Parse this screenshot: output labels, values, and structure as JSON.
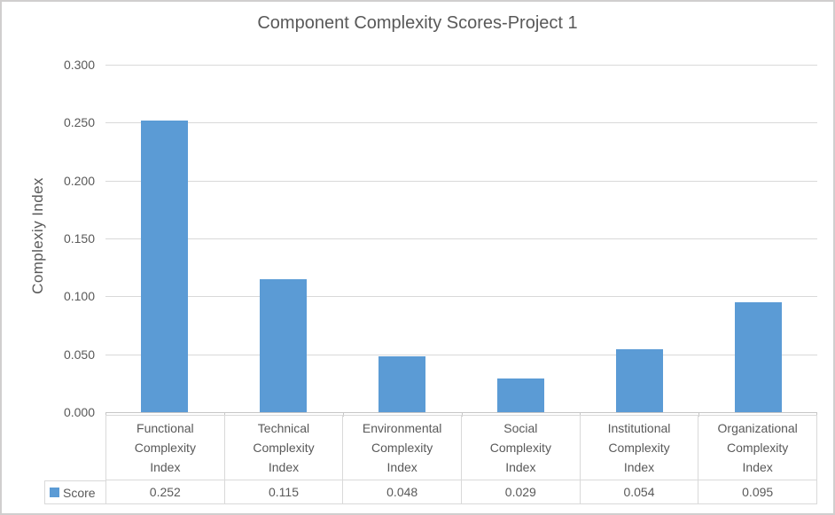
{
  "chart_data": {
    "type": "bar",
    "title": "Component Complexity Scores-Project 1",
    "ylabel": "Complexiy Index",
    "xlabel": "",
    "categories": [
      "Functional Complexity Index",
      "Technical Complexity Index",
      "Environmental Complexity Index",
      "Social Complexity Index",
      "Institutional Complexity Index",
      "Organizational Complexity Index"
    ],
    "series": [
      {
        "name": "Score",
        "values": [
          0.252,
          0.115,
          0.048,
          0.029,
          0.054,
          0.095
        ]
      }
    ],
    "ylim": [
      0,
      0.3
    ],
    "yticks": [
      0.3,
      0.25,
      0.2,
      0.15,
      0.1,
      0.05,
      0
    ],
    "ytick_decimals": 3,
    "grid": true,
    "legend_position": "data-table-left",
    "data_table_shown": true
  },
  "colors": {
    "bar": "#5b9bd5",
    "text": "#595959",
    "gridline": "#d9d9d9",
    "axis_line": "#c6c6c6",
    "table_border": "#d9d9d9",
    "chart_border": "#d0cece",
    "background": "#ffffff"
  }
}
